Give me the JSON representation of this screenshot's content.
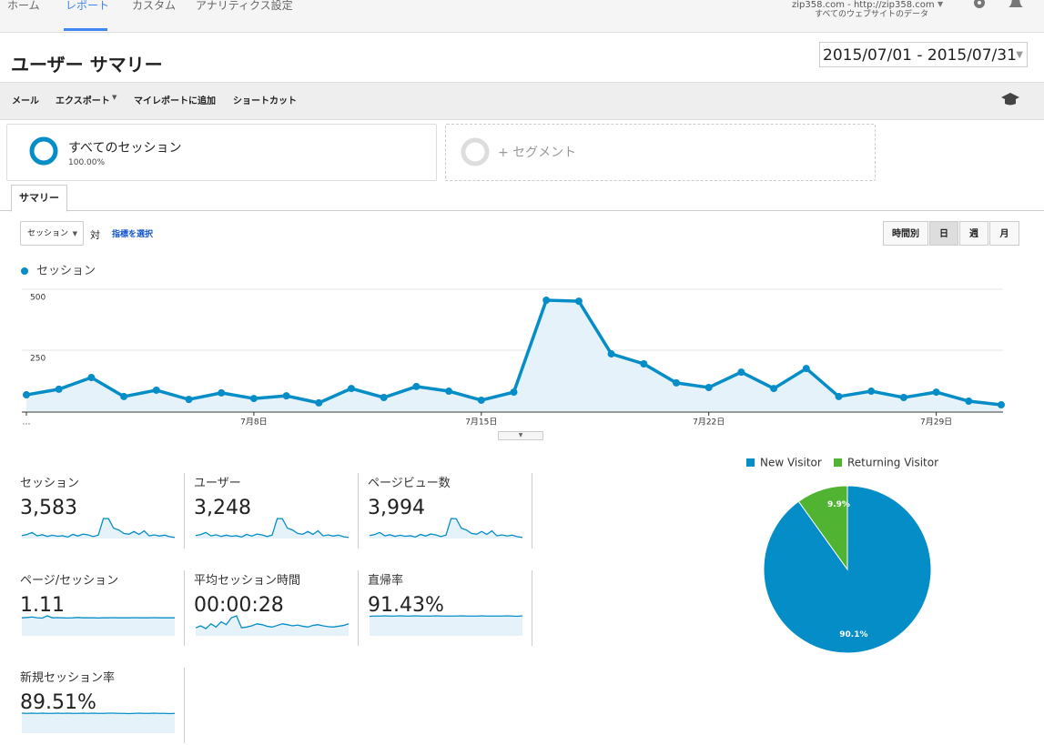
{
  "nav": {
    "tabs": [
      "ホーム",
      "レポート",
      "カスタム",
      "アナリティクス設定"
    ],
    "active_tab": "レポート",
    "account": "zip358.com - http://zip358.com",
    "view": "すべてのウェブサイトのデータ"
  },
  "header": {
    "title": "ユーザー サマリー",
    "date_range": "2015/07/01 - 2015/07/31"
  },
  "toolbar": [
    "メール",
    "エクスポート",
    "マイレポートに追加",
    "ショートカット"
  ],
  "segments": {
    "active_name": "すべてのセッション",
    "active_percent": "100.00%",
    "add": "+ セグメント"
  },
  "tab": "サマリー",
  "controls": {
    "metric": "セッション",
    "versus": "対",
    "select_metric": "指標を選択",
    "granularity": [
      "時間別",
      "日",
      "週",
      "月"
    ],
    "active_granularity": "日"
  },
  "line_chart": {
    "type": "line",
    "categories": [
      "…",
      null,
      null,
      null,
      null,
      null,
      null,
      "7月8日",
      null,
      null,
      null,
      null,
      null,
      null,
      "7月15日",
      null,
      null,
      null,
      null,
      null,
      null,
      "7月22日",
      null,
      null,
      null,
      null,
      null,
      null,
      "7月29日",
      null,
      null
    ],
    "series": [
      {
        "name": "セッション",
        "color": "#058dc7",
        "values": [
          67,
          90,
          138,
          60,
          86,
          48,
          75,
          52,
          63,
          34,
          93,
          56,
          101,
          82,
          45,
          78,
          455,
          451,
          235,
          194,
          116,
          97,
          160,
          93,
          175,
          60,
          82,
          56,
          78,
          41,
          26
        ]
      }
    ],
    "ylim": [
      0,
      500
    ],
    "yticks": [
      250,
      500
    ],
    "grid": true
  },
  "scorecards": [
    {
      "label": "セッション",
      "value": "3,583",
      "spark": [
        67,
        90,
        138,
        60,
        86,
        48,
        75,
        52,
        63,
        34,
        93,
        56,
        101,
        82,
        45,
        78,
        455,
        451,
        235,
        194,
        116,
        97,
        160,
        93,
        175,
        60,
        82,
        56,
        78,
        41,
        26
      ]
    },
    {
      "label": "ユーザー",
      "value": "3,248",
      "spark": [
        60,
        81,
        124,
        54,
        77,
        43,
        68,
        47,
        57,
        31,
        84,
        50,
        91,
        74,
        41,
        70,
        410,
        406,
        212,
        175,
        104,
        87,
        144,
        84,
        158,
        54,
        74,
        50,
        70,
        37,
        23
      ]
    },
    {
      "label": "ページビュー数",
      "value": "3,994",
      "spark": [
        75,
        100,
        154,
        67,
        96,
        54,
        84,
        58,
        70,
        38,
        104,
        63,
        113,
        92,
        50,
        87,
        508,
        503,
        262,
        217,
        130,
        108,
        179,
        104,
        195,
        67,
        92,
        63,
        87,
        46,
        29
      ]
    },
    {
      "label": "ページ/セッション",
      "value": "1.11",
      "spark": [
        1.1,
        1.12,
        1.15,
        1.1,
        1.08,
        1.22,
        1.1,
        1.11,
        1.1,
        1.09,
        1.1,
        1.12,
        1.1,
        1.1,
        1.1,
        1.09,
        1.1,
        1.1,
        1.11,
        1.1,
        1.1,
        1.1,
        1.11,
        1.1,
        1.1,
        1.1,
        1.11,
        1.1,
        1.1,
        1.1,
        1.1
      ]
    },
    {
      "label": "平均セッション時間",
      "value": "00:00:28",
      "spark": [
        20,
        25,
        18,
        30,
        22,
        35,
        28,
        45,
        50,
        20,
        22,
        25,
        30,
        28,
        24,
        22,
        26,
        30,
        28,
        25,
        27,
        24,
        22,
        26,
        28,
        25,
        23,
        22,
        24,
        26,
        30
      ]
    },
    {
      "label": "直帰率",
      "value": "91.43%",
      "spark": [
        90,
        91,
        91,
        92,
        91,
        91,
        92,
        91,
        91,
        92,
        91,
        91,
        91,
        92,
        91,
        91,
        91,
        91,
        92,
        91,
        91,
        91,
        92,
        91,
        91,
        91,
        91,
        92,
        91,
        90,
        92
      ]
    },
    {
      "label": "新規セッション率",
      "value": "89.51%",
      "spark": [
        90,
        89,
        90,
        89,
        90,
        89,
        89,
        90,
        89,
        90,
        89,
        89,
        90,
        89,
        90,
        89,
        89,
        90,
        90,
        89,
        89,
        88,
        89,
        90,
        89,
        89,
        90,
        89,
        89,
        88,
        89
      ]
    }
  ],
  "pie_chart": {
    "type": "pie",
    "categories": [
      "New Visitor",
      "Returning Visitor"
    ],
    "values": [
      90.1,
      9.9
    ],
    "value_labels": [
      "90.1%",
      "9.9%"
    ],
    "colors": [
      "#058dc7",
      "#50b432"
    ]
  }
}
